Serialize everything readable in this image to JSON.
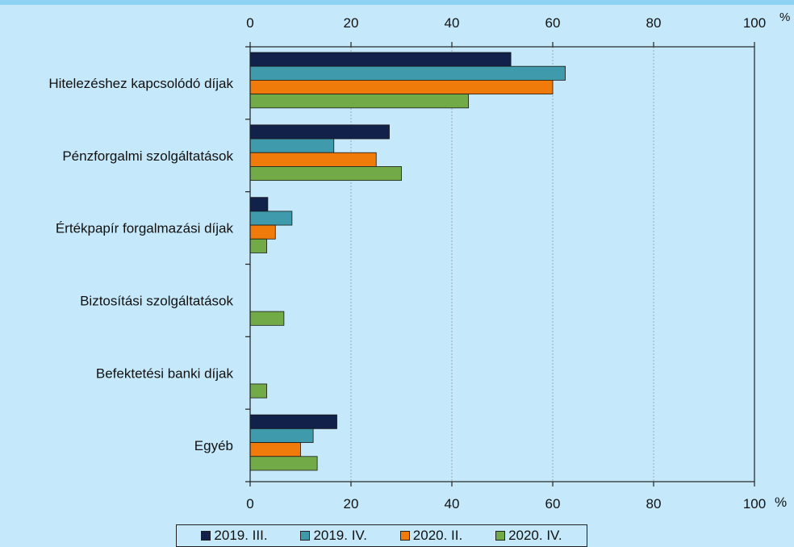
{
  "chart_data": {
    "type": "bar",
    "orientation": "horizontal",
    "categories": [
      "Hitelezéshez kapcsolódó díjak",
      "Pénzforgalmi szolgáltatások",
      "Értékpapír forgalmazási díjak",
      "Biztosítási szolgáltatások",
      "Befektetési banki díjak",
      "Egyéb"
    ],
    "series": [
      {
        "name": "2019. III.",
        "color": "#12214a",
        "values": [
          51.7,
          27.6,
          3.5,
          0,
          0,
          17.2
        ]
      },
      {
        "name": "2019. IV.",
        "color": "#3f9aab",
        "values": [
          62.5,
          16.6,
          8.3,
          0,
          0,
          12.5
        ]
      },
      {
        "name": "2020. II.",
        "color": "#f07a0a",
        "values": [
          60.0,
          25.0,
          5.0,
          0,
          0,
          10.0
        ]
      },
      {
        "name": "2020. IV.",
        "color": "#72aa48",
        "values": [
          43.3,
          30.0,
          3.3,
          6.7,
          3.3,
          13.3
        ]
      }
    ],
    "xlim": [
      0,
      100
    ],
    "xticks": [
      "0",
      "20",
      "40",
      "60",
      "80",
      "100"
    ],
    "unit_top": "%",
    "unit_bottom": "%",
    "grid": "vertical dashed",
    "legend_position": "bottom"
  }
}
